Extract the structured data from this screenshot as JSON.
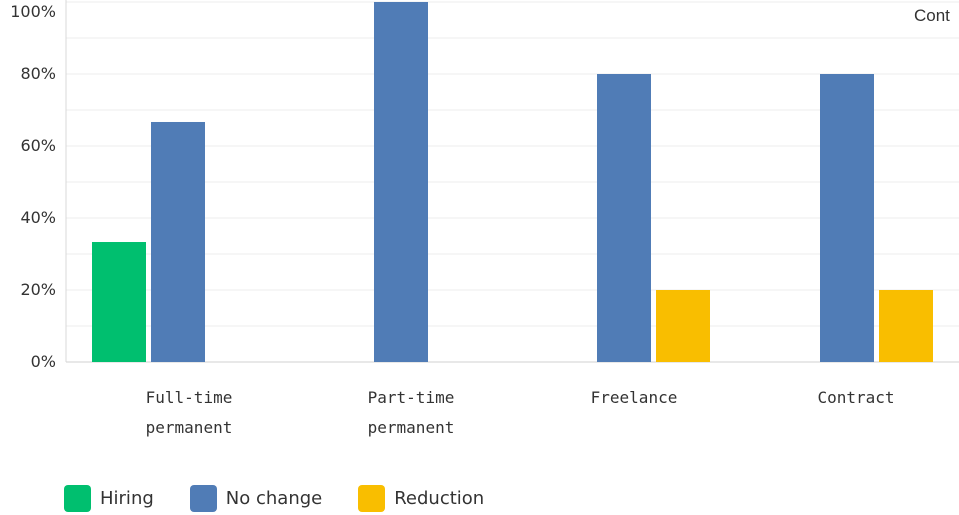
{
  "corner_label": "Cont",
  "chart_data": {
    "type": "bar",
    "categories": [
      [
        "Full-time",
        "permanent"
      ],
      [
        "Part-time",
        "permanent"
      ],
      [
        "Freelance"
      ],
      [
        "Contract"
      ]
    ],
    "series": [
      {
        "name": "Hiring",
        "color": "#00bf6f",
        "values": [
          33.33,
          0,
          0,
          0
        ]
      },
      {
        "name": "No change",
        "color": "#507cb6",
        "values": [
          66.67,
          100,
          80,
          80
        ]
      },
      {
        "name": "Reduction",
        "color": "#f9be00",
        "values": [
          0,
          0,
          20,
          20
        ]
      }
    ],
    "y_ticks": [
      "0%",
      "20%",
      "40%",
      "60%",
      "80%",
      "100%"
    ],
    "ylim": [
      0,
      100
    ],
    "grid": true,
    "legend_position": "bottom-left"
  }
}
